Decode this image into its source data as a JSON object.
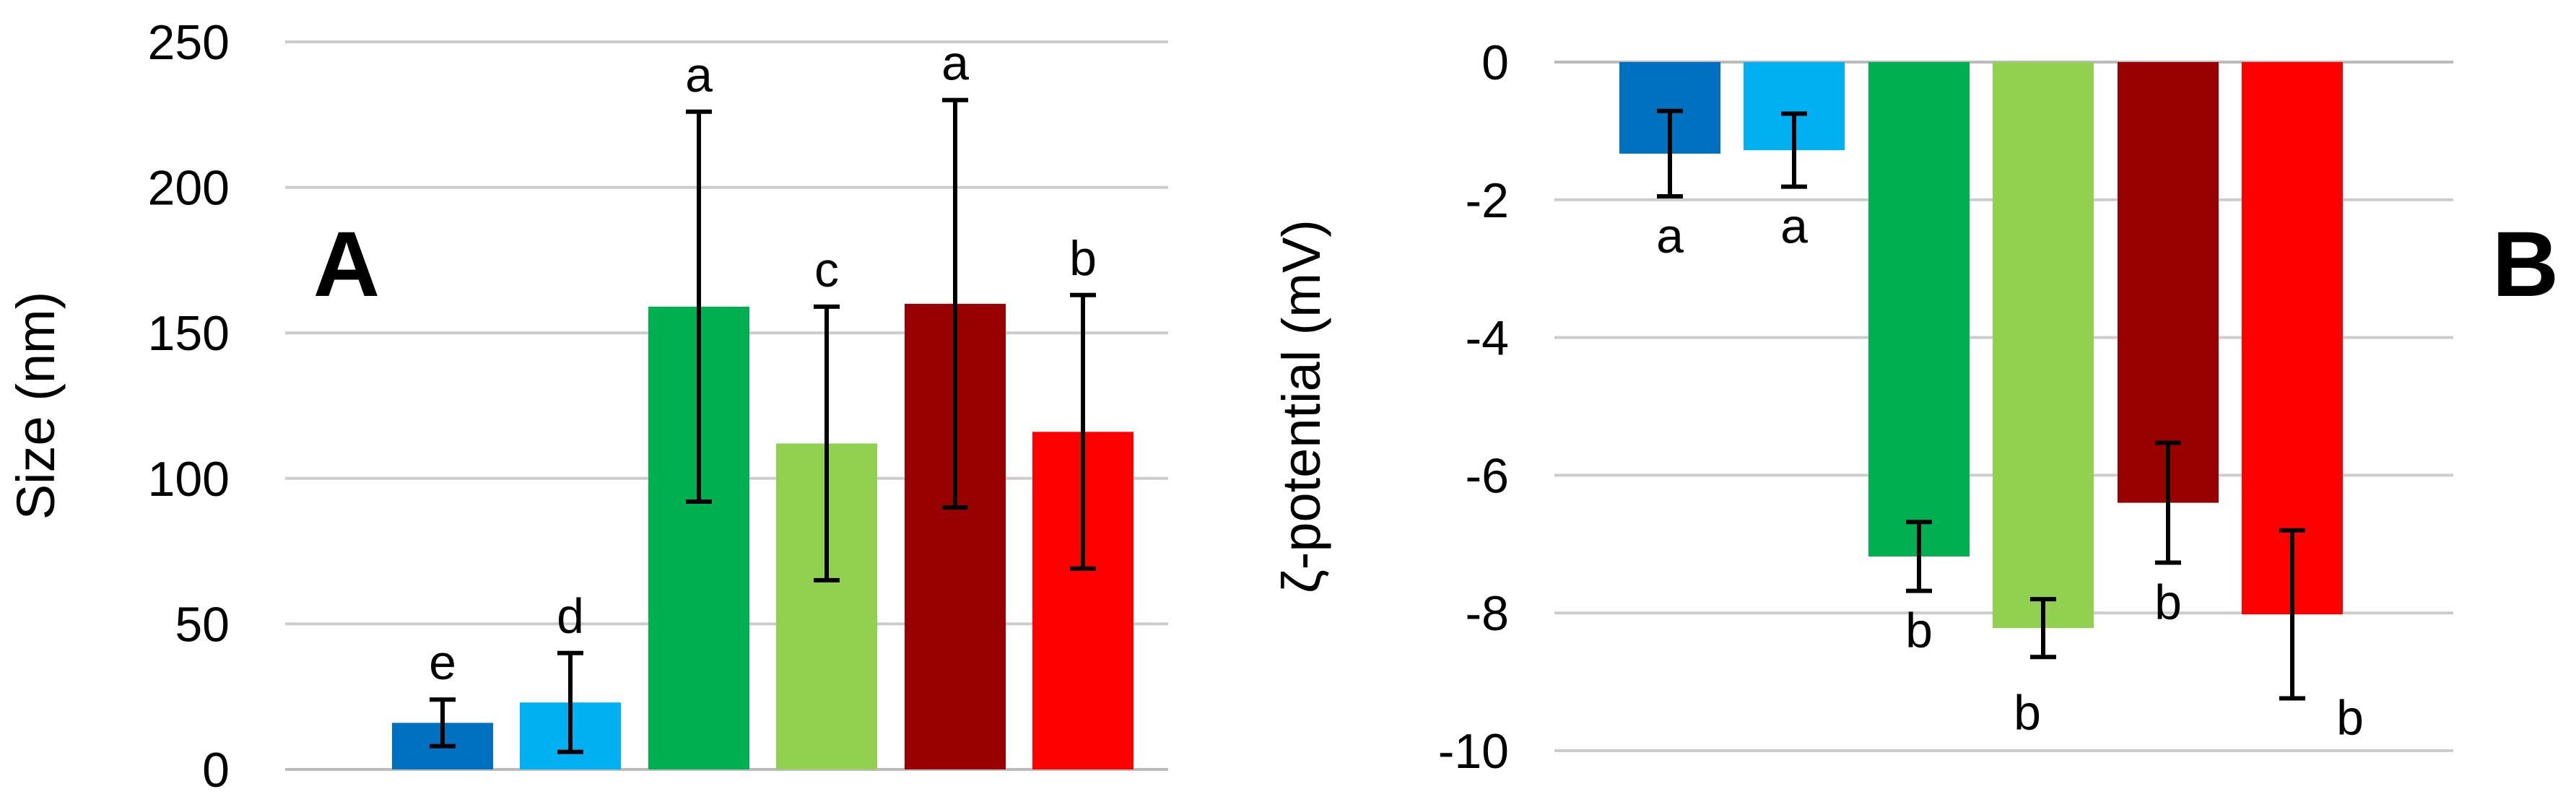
{
  "chart_data": [
    {
      "type": "bar",
      "panel_label": "A",
      "ylabel": "Size (nm)",
      "ylim": [
        0,
        250
      ],
      "yticks": [
        0,
        50,
        100,
        150,
        200,
        250
      ],
      "grid": true,
      "values": [
        16,
        23,
        159,
        112,
        160,
        116
      ],
      "errors": [
        8,
        17,
        67,
        47,
        70,
        47
      ],
      "letters": [
        "e",
        "d",
        "a",
        "c",
        "a",
        "b"
      ],
      "colors": [
        "#0070C0",
        "#00B0F0",
        "#00B050",
        "#92D050",
        "#990000",
        "#FF0000"
      ]
    },
    {
      "type": "bar",
      "panel_label": "B",
      "ylabel": "ζ-potential (mV)",
      "ylim": [
        -10,
        0
      ],
      "yticks": [
        0,
        -2,
        -4,
        -6,
        -8,
        -10
      ],
      "grid": true,
      "values": [
        -1.33,
        -1.28,
        -7.18,
        -8.22,
        -6.4,
        -8.02
      ],
      "errors": [
        0.62,
        0.53,
        0.5,
        0.42,
        0.87,
        1.22
      ],
      "letters": [
        "a",
        "a",
        "b",
        "b",
        "b",
        "b"
      ],
      "colors": [
        "#0070C0",
        "#00B0F0",
        "#00B050",
        "#92D050",
        "#990000",
        "#FF0000"
      ]
    }
  ]
}
